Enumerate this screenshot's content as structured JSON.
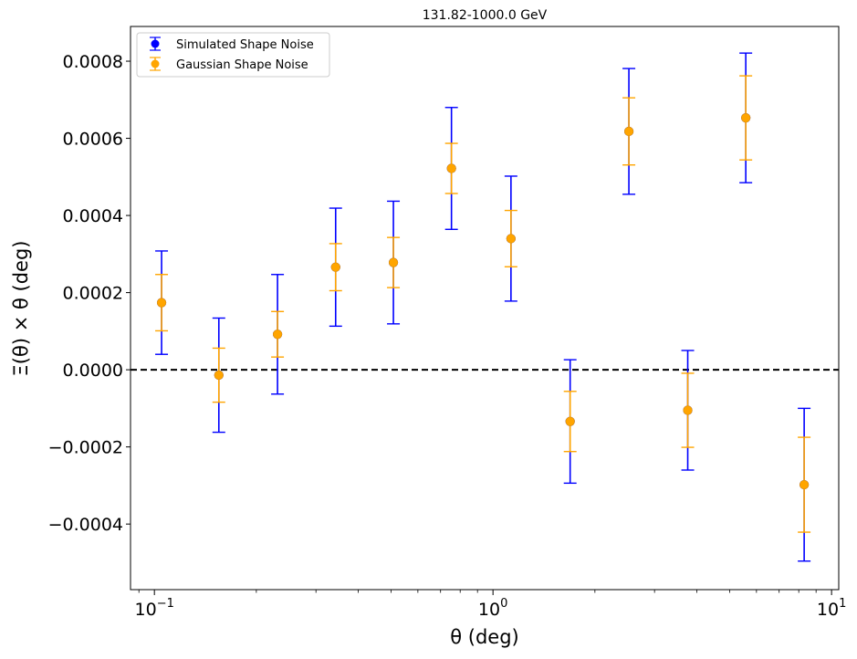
{
  "chart_data": {
    "type": "scatter",
    "title": "131.82-1000.0 GeV",
    "xlabel": "θ (deg)",
    "ylabel": "Ξ(θ) × θ (deg)",
    "xscale": "log",
    "xlim": [
      0.085,
      10.5
    ],
    "ylim": [
      -0.00057,
      0.00089
    ],
    "x_ticks": [
      {
        "value": 0.1,
        "base": "10",
        "exp": "−1"
      },
      {
        "value": 1,
        "base": "10",
        "exp": "0"
      },
      {
        "value": 10,
        "base": "10",
        "exp": "1"
      }
    ],
    "y_ticks": [
      {
        "value": -0.0004,
        "label": "−0.0004"
      },
      {
        "value": -0.0002,
        "label": "−0.0002"
      },
      {
        "value": 0.0,
        "label": "0.0000"
      },
      {
        "value": 0.0002,
        "label": "0.0002"
      },
      {
        "value": 0.0004,
        "label": "0.0004"
      },
      {
        "value": 0.0006,
        "label": "0.0006"
      },
      {
        "value": 0.0008,
        "label": "0.0008"
      }
    ],
    "reference_line": {
      "y": 0.0,
      "style": "dashed",
      "color": "#000000"
    },
    "legend_position": "upper-left",
    "series": [
      {
        "name": "Simulated Shape Noise",
        "color": "#0000ff",
        "x": [
          0.105,
          0.155,
          0.231,
          0.343,
          0.508,
          0.754,
          1.13,
          1.69,
          2.52,
          3.76,
          5.58,
          8.3
        ],
        "y": [
          0.000174,
          -1.4e-05,
          9.2e-05,
          0.000266,
          0.000278,
          0.000522,
          0.00034,
          -0.000134,
          0.000618,
          -0.000105,
          0.000653,
          -0.000298
        ],
        "yerr": [
          0.000134,
          0.000148,
          0.000155,
          0.000153,
          0.000159,
          0.000158,
          0.000162,
          0.00016,
          0.000163,
          0.000155,
          0.000168,
          0.000198
        ]
      },
      {
        "name": "Gaussian Shape Noise",
        "color": "#ffa500",
        "x": [
          0.105,
          0.155,
          0.231,
          0.343,
          0.508,
          0.754,
          1.13,
          1.69,
          2.52,
          3.76,
          5.58,
          8.3
        ],
        "y": [
          0.000174,
          -1.4e-05,
          9.2e-05,
          0.000266,
          0.000278,
          0.000522,
          0.00034,
          -0.000134,
          0.000618,
          -0.000105,
          0.000653,
          -0.000298
        ],
        "yerr": [
          7.3e-05,
          7e-05,
          5.9e-05,
          6.1e-05,
          6.5e-05,
          6.5e-05,
          7.3e-05,
          7.8e-05,
          8.7e-05,
          9.6e-05,
          0.000109,
          0.000123
        ]
      }
    ]
  }
}
